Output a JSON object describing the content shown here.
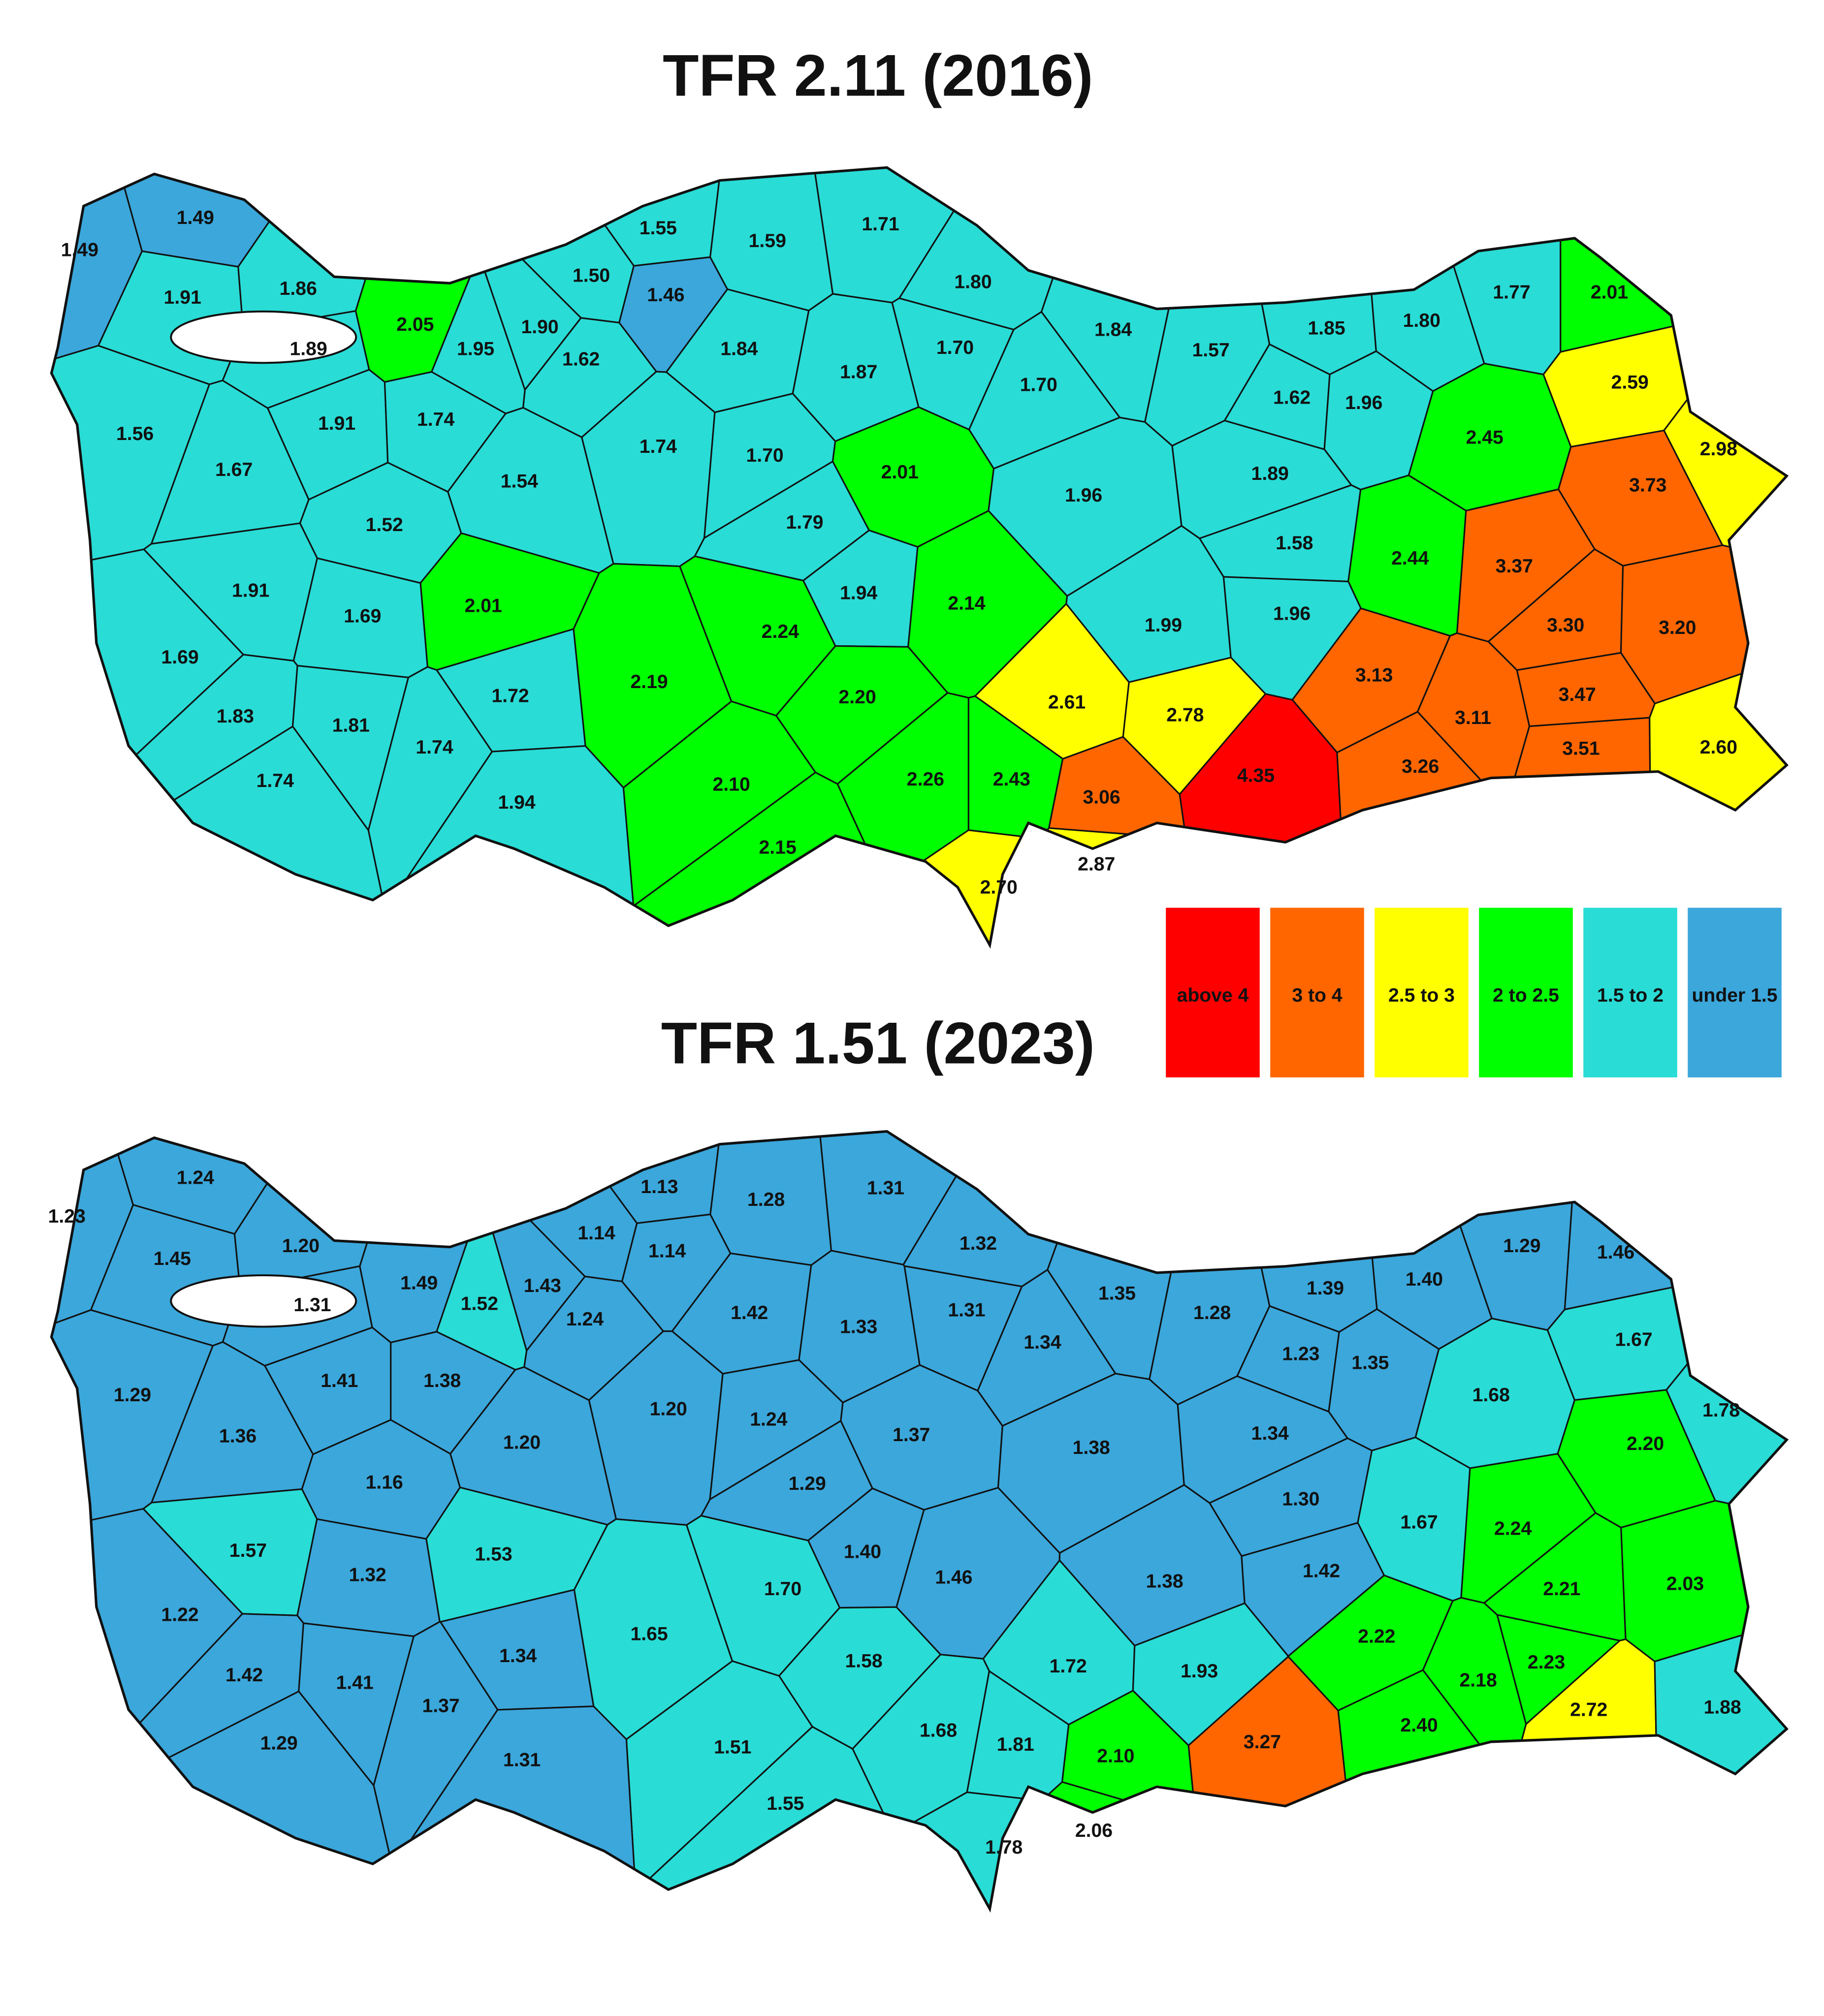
{
  "maps": [
    {
      "title": "TFR 2.11 (2016)",
      "regions": [
        {
          "label": "1.49",
          "color": "#3ba7db"
        },
        {
          "label": "1.49",
          "color": "#3ba7db"
        },
        {
          "label": "1.91",
          "color": "#29dcd6"
        },
        {
          "label": "1.86",
          "color": "#29dcd6"
        },
        {
          "label": "1.89",
          "color": "#29dcd6"
        },
        {
          "label": "2.05",
          "color": "#00ff00"
        },
        {
          "label": "1.95",
          "color": "#29dcd6"
        },
        {
          "label": "1.90",
          "color": "#29dcd6"
        },
        {
          "label": "1.55",
          "color": "#29dcd6"
        },
        {
          "label": "1.50",
          "color": "#29dcd6"
        },
        {
          "label": "1.46",
          "color": "#3ba7db"
        },
        {
          "label": "1.59",
          "color": "#29dcd6"
        },
        {
          "label": "1.71",
          "color": "#29dcd6"
        },
        {
          "label": "1.80",
          "color": "#29dcd6"
        },
        {
          "label": "1.62",
          "color": "#29dcd6"
        },
        {
          "label": "1.84",
          "color": "#29dcd6"
        },
        {
          "label": "1.70",
          "color": "#29dcd6"
        },
        {
          "label": "1.84",
          "color": "#29dcd6"
        },
        {
          "label": "1.57",
          "color": "#29dcd6"
        },
        {
          "label": "1.85",
          "color": "#29dcd6"
        },
        {
          "label": "1.80",
          "color": "#29dcd6"
        },
        {
          "label": "1.77",
          "color": "#29dcd6"
        },
        {
          "label": "2.01",
          "color": "#00ff00"
        },
        {
          "label": "2.59",
          "color": "#ffff00"
        },
        {
          "label": "1.56",
          "color": "#29dcd6"
        },
        {
          "label": "1.91",
          "color": "#29dcd6"
        },
        {
          "label": "1.74",
          "color": "#29dcd6"
        },
        {
          "label": "1.87",
          "color": "#29dcd6"
        },
        {
          "label": "1.70",
          "color": "#29dcd6"
        },
        {
          "label": "1.62",
          "color": "#29dcd6"
        },
        {
          "label": "1.96",
          "color": "#29dcd6"
        },
        {
          "label": "2.45",
          "color": "#00ff00"
        },
        {
          "label": "2.98",
          "color": "#ffff00"
        },
        {
          "label": "1.67",
          "color": "#29dcd6"
        },
        {
          "label": "1.54",
          "color": "#29dcd6"
        },
        {
          "label": "1.74",
          "color": "#29dcd6"
        },
        {
          "label": "1.70",
          "color": "#29dcd6"
        },
        {
          "label": "2.01",
          "color": "#00ff00"
        },
        {
          "label": "1.96",
          "color": "#29dcd6"
        },
        {
          "label": "1.89",
          "color": "#29dcd6"
        },
        {
          "label": "3.73",
          "color": "#ff6600"
        },
        {
          "label": "1.52",
          "color": "#29dcd6"
        },
        {
          "label": "1.79",
          "color": "#29dcd6"
        },
        {
          "label": "1.58",
          "color": "#29dcd6"
        },
        {
          "label": "2.44",
          "color": "#00ff00"
        },
        {
          "label": "3.37",
          "color": "#ff6600"
        },
        {
          "label": "1.91",
          "color": "#29dcd6"
        },
        {
          "label": "1.94",
          "color": "#29dcd6"
        },
        {
          "label": "2.14",
          "color": "#00ff00"
        },
        {
          "label": "2.01",
          "color": "#00ff00"
        },
        {
          "label": "1.69",
          "color": "#29dcd6"
        },
        {
          "label": "2.24",
          "color": "#00ff00"
        },
        {
          "label": "1.99",
          "color": "#29dcd6"
        },
        {
          "label": "1.96",
          "color": "#29dcd6"
        },
        {
          "label": "3.30",
          "color": "#ff6600"
        },
        {
          "label": "3.20",
          "color": "#ff6600"
        },
        {
          "label": "1.69",
          "color": "#29dcd6"
        },
        {
          "label": "2.19",
          "color": "#00ff00"
        },
        {
          "label": "2.20",
          "color": "#00ff00"
        },
        {
          "label": "2.61",
          "color": "#ffff00"
        },
        {
          "label": "3.13",
          "color": "#ff6600"
        },
        {
          "label": "3.47",
          "color": "#ff6600"
        },
        {
          "label": "1.72",
          "color": "#29dcd6"
        },
        {
          "label": "2.78",
          "color": "#ffff00"
        },
        {
          "label": "3.11",
          "color": "#ff6600"
        },
        {
          "label": "1.83",
          "color": "#29dcd6"
        },
        {
          "label": "1.81",
          "color": "#29dcd6"
        },
        {
          "label": "1.74",
          "color": "#29dcd6"
        },
        {
          "label": "3.51",
          "color": "#ff6600"
        },
        {
          "label": "2.60",
          "color": "#ffff00"
        },
        {
          "label": "4.35",
          "color": "#ff0000"
        },
        {
          "label": "3.26",
          "color": "#ff6600"
        },
        {
          "label": "1.74",
          "color": "#29dcd6"
        },
        {
          "label": "2.10",
          "color": "#00ff00"
        },
        {
          "label": "2.26",
          "color": "#00ff00"
        },
        {
          "label": "2.43",
          "color": "#00ff00"
        },
        {
          "label": "3.06",
          "color": "#ff6600"
        },
        {
          "label": "1.94",
          "color": "#29dcd6"
        },
        {
          "label": "2.15",
          "color": "#00ff00"
        },
        {
          "label": "2.87",
          "color": "#ffff00"
        },
        {
          "label": "2.70",
          "color": "#ffff00"
        }
      ]
    },
    {
      "title": "TFR 1.51 (2023)",
      "regions": [
        {
          "label": "1.23",
          "color": "#3ba7db"
        },
        {
          "label": "1.24",
          "color": "#3ba7db"
        },
        {
          "label": "1.45",
          "color": "#3ba7db"
        },
        {
          "label": "1.20",
          "color": "#3ba7db"
        },
        {
          "label": "1.31",
          "color": "#3ba7db"
        },
        {
          "label": "1.49",
          "color": "#3ba7db"
        },
        {
          "label": "1.52",
          "color": "#29dcd6"
        },
        {
          "label": "1.43",
          "color": "#3ba7db"
        },
        {
          "label": "1.13",
          "color": "#3ba7db"
        },
        {
          "label": "1.14",
          "color": "#3ba7db"
        },
        {
          "label": "1.14",
          "color": "#3ba7db"
        },
        {
          "label": "1.28",
          "color": "#3ba7db"
        },
        {
          "label": "1.31",
          "color": "#3ba7db"
        },
        {
          "label": "1.32",
          "color": "#3ba7db"
        },
        {
          "label": "1.24",
          "color": "#3ba7db"
        },
        {
          "label": "1.42",
          "color": "#3ba7db"
        },
        {
          "label": "1.33",
          "color": "#3ba7db"
        },
        {
          "label": "1.31",
          "color": "#3ba7db"
        },
        {
          "label": "1.35",
          "color": "#3ba7db"
        },
        {
          "label": "1.28",
          "color": "#3ba7db"
        },
        {
          "label": "1.39",
          "color": "#3ba7db"
        },
        {
          "label": "1.40",
          "color": "#3ba7db"
        },
        {
          "label": "1.29",
          "color": "#3ba7db"
        },
        {
          "label": "1.46",
          "color": "#3ba7db"
        },
        {
          "label": "1.23",
          "color": "#3ba7db"
        },
        {
          "label": "1.35",
          "color": "#3ba7db"
        },
        {
          "label": "1.34",
          "color": "#3ba7db"
        },
        {
          "label": "1.29",
          "color": "#3ba7db"
        },
        {
          "label": "1.41",
          "color": "#3ba7db"
        },
        {
          "label": "1.38",
          "color": "#3ba7db"
        },
        {
          "label": "1.68",
          "color": "#29dcd6"
        },
        {
          "label": "1.67",
          "color": "#29dcd6"
        },
        {
          "label": "1.36",
          "color": "#3ba7db"
        },
        {
          "label": "1.20",
          "color": "#3ba7db"
        },
        {
          "label": "1.24",
          "color": "#3ba7db"
        },
        {
          "label": "1.37",
          "color": "#3ba7db"
        },
        {
          "label": "1.38",
          "color": "#3ba7db"
        },
        {
          "label": "1.34",
          "color": "#3ba7db"
        },
        {
          "label": "1.78",
          "color": "#29dcd6"
        },
        {
          "label": "1.20",
          "color": "#3ba7db"
        },
        {
          "label": "1.16",
          "color": "#3ba7db"
        },
        {
          "label": "1.29",
          "color": "#3ba7db"
        },
        {
          "label": "2.20",
          "color": "#00ff00"
        },
        {
          "label": "1.30",
          "color": "#3ba7db"
        },
        {
          "label": "1.67",
          "color": "#29dcd6"
        },
        {
          "label": "2.24",
          "color": "#00ff00"
        },
        {
          "label": "1.57",
          "color": "#29dcd6"
        },
        {
          "label": "1.53",
          "color": "#29dcd6"
        },
        {
          "label": "1.40",
          "color": "#3ba7db"
        },
        {
          "label": "1.46",
          "color": "#3ba7db"
        },
        {
          "label": "1.32",
          "color": "#3ba7db"
        },
        {
          "label": "1.38",
          "color": "#3ba7db"
        },
        {
          "label": "1.42",
          "color": "#3ba7db"
        },
        {
          "label": "2.21",
          "color": "#00ff00"
        },
        {
          "label": "2.03",
          "color": "#00ff00"
        },
        {
          "label": "1.70",
          "color": "#29dcd6"
        },
        {
          "label": "1.22",
          "color": "#3ba7db"
        },
        {
          "label": "1.65",
          "color": "#29dcd6"
        },
        {
          "label": "2.22",
          "color": "#00ff00"
        },
        {
          "label": "1.34",
          "color": "#3ba7db"
        },
        {
          "label": "1.58",
          "color": "#29dcd6"
        },
        {
          "label": "1.72",
          "color": "#29dcd6"
        },
        {
          "label": "2.23",
          "color": "#00ff00"
        },
        {
          "label": "1.93",
          "color": "#29dcd6"
        },
        {
          "label": "1.42",
          "color": "#3ba7db"
        },
        {
          "label": "1.41",
          "color": "#3ba7db"
        },
        {
          "label": "1.37",
          "color": "#3ba7db"
        },
        {
          "label": "2.18",
          "color": "#00ff00"
        },
        {
          "label": "2.72",
          "color": "#ffff00"
        },
        {
          "label": "1.88",
          "color": "#29dcd6"
        },
        {
          "label": "2.40",
          "color": "#00ff00"
        },
        {
          "label": "3.27",
          "color": "#ff6600"
        },
        {
          "label": "1.68",
          "color": "#29dcd6"
        },
        {
          "label": "1.81",
          "color": "#29dcd6"
        },
        {
          "label": "2.10",
          "color": "#00ff00"
        },
        {
          "label": "1.29",
          "color": "#3ba7db"
        },
        {
          "label": "1.51",
          "color": "#29dcd6"
        },
        {
          "label": "1.31",
          "color": "#3ba7db"
        },
        {
          "label": "1.55",
          "color": "#29dcd6"
        },
        {
          "label": "2.06",
          "color": "#00ff00"
        },
        {
          "label": "1.78",
          "color": "#29dcd6"
        }
      ]
    }
  ],
  "legend": [
    {
      "label": "above 4",
      "color": "#ff0000"
    },
    {
      "label": "3 to 4",
      "color": "#ff6600"
    },
    {
      "label": "2.5 to 3",
      "color": "#ffff00"
    },
    {
      "label": "2 to 2.5",
      "color": "#00ff00"
    },
    {
      "label": "1.5 to 2",
      "color": "#29dcd6"
    },
    {
      "label": "under 1.5",
      "color": "#3ba7db"
    }
  ]
}
